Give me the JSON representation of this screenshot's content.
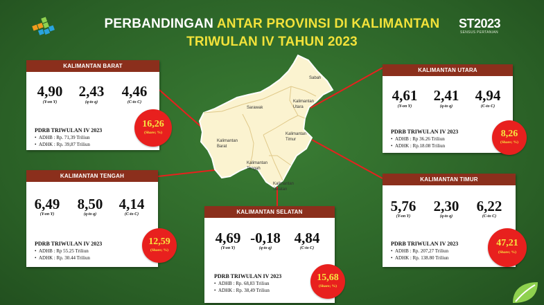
{
  "header": {
    "title_part1": "PERBANDINGAN ",
    "title_part2": "ANTAR PROVINSI DI KALIMANTAN",
    "title_line2": "TRIWULAN IV TAHUN 2023",
    "logo_right_main": "ST2023",
    "logo_right_sub": "SENSUS PERTANIAN"
  },
  "colors": {
    "header_bar": "#8b2f1c",
    "share_circle": "#e8201e",
    "share_text": "#f7e640",
    "background": "#2e6b2a"
  },
  "map_labels": [
    "Sabah",
    "Sarawak",
    "Kalimantan Utara",
    "Kalimantan Timur",
    "Kalimantan Barat",
    "Kalimantan Tengah",
    "Kalimantan Selatan"
  ],
  "metric_labels": [
    "(Y-on Y)",
    "(q-to q)",
    "(C-to C)"
  ],
  "provinces": [
    {
      "name": "KALIMANTAN BARAT",
      "yoy": "4,90",
      "qtq": "2,43",
      "ctc": "4,46",
      "pdrb_title": "PDRB TRIWULAN IV 2023",
      "adhb": "ADHB : Rp. 71,39 Triliun",
      "adhk": "ADHK : Rp. 39,87 Triliun",
      "share": "16,26",
      "share_label": "(Share; %)"
    },
    {
      "name": "KALIMANTAN UTARA",
      "yoy": "4,61",
      "qtq": "2,41",
      "ctc": "4,94",
      "pdrb_title": "PDRB TRIWULAN IV 2023",
      "adhb": "ADHB : Rp 36.26 Triliun",
      "adhk": "ADHK : Rp.18.08 Triliun",
      "share": "8,26",
      "share_label": "(Share; %)"
    },
    {
      "name": "KALIMANTAN TENGAH",
      "yoy": "6,49",
      "qtq": "8,50",
      "ctc": "4,14",
      "pdrb_title": "PDRB TRIWULAN IV 2023",
      "adhb": "ADHB : Rp 55.25 Triliun",
      "adhk": "ADHK : Rp. 30.44 Triliun",
      "share": "12,59",
      "share_label": "(Share; %)"
    },
    {
      "name": "KALIMANTAN SELATAN",
      "yoy": "4,69",
      "qtq": "-0,18",
      "ctc": "4,84",
      "pdrb_title": "PDRB TRIWULAN IV 2023",
      "adhb": "ADHB : Rp. 68,83 Triliun",
      "adhk": "ADHK : Rp. 38,49 Triliun",
      "share": "15,68",
      "share_label": "(Share; %)"
    },
    {
      "name": "KALIMANTAN TIMUR",
      "yoy": "5,76",
      "qtq": "2,30",
      "ctc": "6,22",
      "pdrb_title": "PDRB TRIWULAN IV 2023",
      "adhb": "ADHB : Rp. 207,27 Triliun",
      "adhk": "ADHK : Rp. 138.80 Triliun",
      "share": "47,21",
      "share_label": "(Share; %)"
    }
  ]
}
